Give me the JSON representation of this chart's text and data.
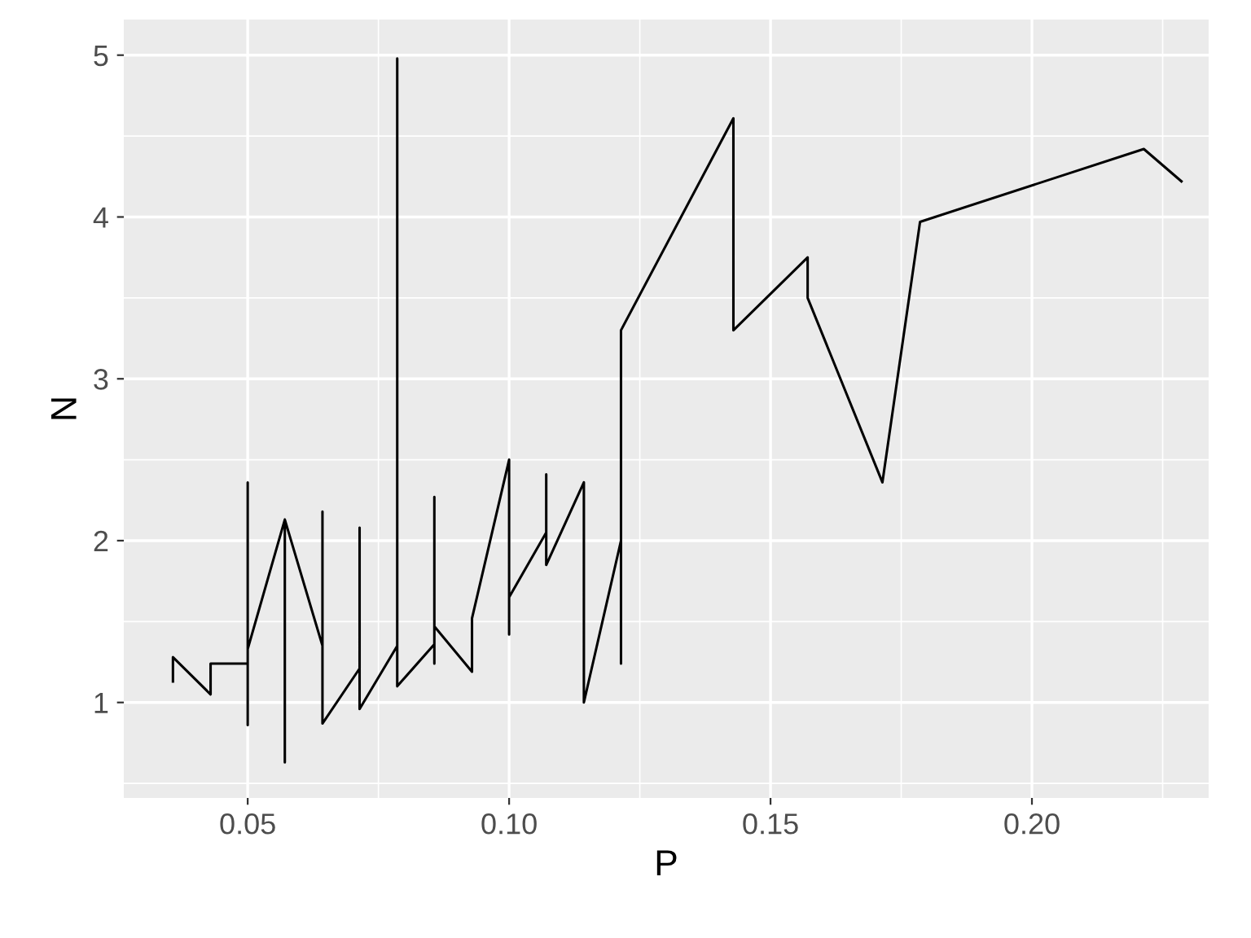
{
  "chart_data": {
    "type": "line",
    "xlabel": "P",
    "ylabel": "N",
    "x": [
      0.0357,
      0.0357,
      0.0429,
      0.0429,
      0.05,
      0.05,
      0.05,
      0.05,
      0.0571,
      0.0571,
      0.0571,
      0.0643,
      0.0643,
      0.0643,
      0.0714,
      0.0714,
      0.0714,
      0.0786,
      0.0786,
      0.0786,
      0.0857,
      0.0857,
      0.0857,
      0.0857,
      0.0929,
      0.0929,
      0.1,
      0.1,
      0.1,
      0.1071,
      0.1071,
      0.1071,
      0.1143,
      0.1143,
      0.1214,
      0.1214,
      0.1214,
      0.1429,
      0.1429,
      0.1571,
      0.1571,
      0.1714,
      0.1786,
      0.2214,
      0.2286
    ],
    "series": [
      {
        "color": "#000000",
        "values": [
          1.13,
          1.28,
          1.05,
          1.24,
          1.24,
          2.36,
          0.86,
          1.33,
          2.13,
          0.63,
          2.13,
          1.35,
          2.18,
          0.87,
          1.21,
          2.08,
          0.96,
          1.35,
          4.98,
          1.1,
          1.36,
          2.27,
          1.24,
          1.47,
          1.19,
          1.52,
          2.5,
          1.42,
          1.65,
          2.05,
          2.41,
          1.85,
          2.36,
          1.0,
          2.0,
          1.24,
          3.3,
          4.61,
          3.3,
          3.75,
          3.5,
          2.36,
          3.97,
          4.42,
          4.22
        ]
      }
    ],
    "xlim": [
      0.0263,
      0.2338
    ],
    "ylim": [
      0.41,
      5.22
    ],
    "xticks": [
      {
        "value": 0.05,
        "label": "0.05"
      },
      {
        "value": 0.1,
        "label": "0.10"
      },
      {
        "value": 0.15,
        "label": "0.15"
      },
      {
        "value": 0.2,
        "label": "0.20"
      }
    ],
    "yticks": [
      1,
      2,
      3,
      4,
      5
    ],
    "grid": true,
    "line_style": "solid",
    "marker": "none"
  }
}
